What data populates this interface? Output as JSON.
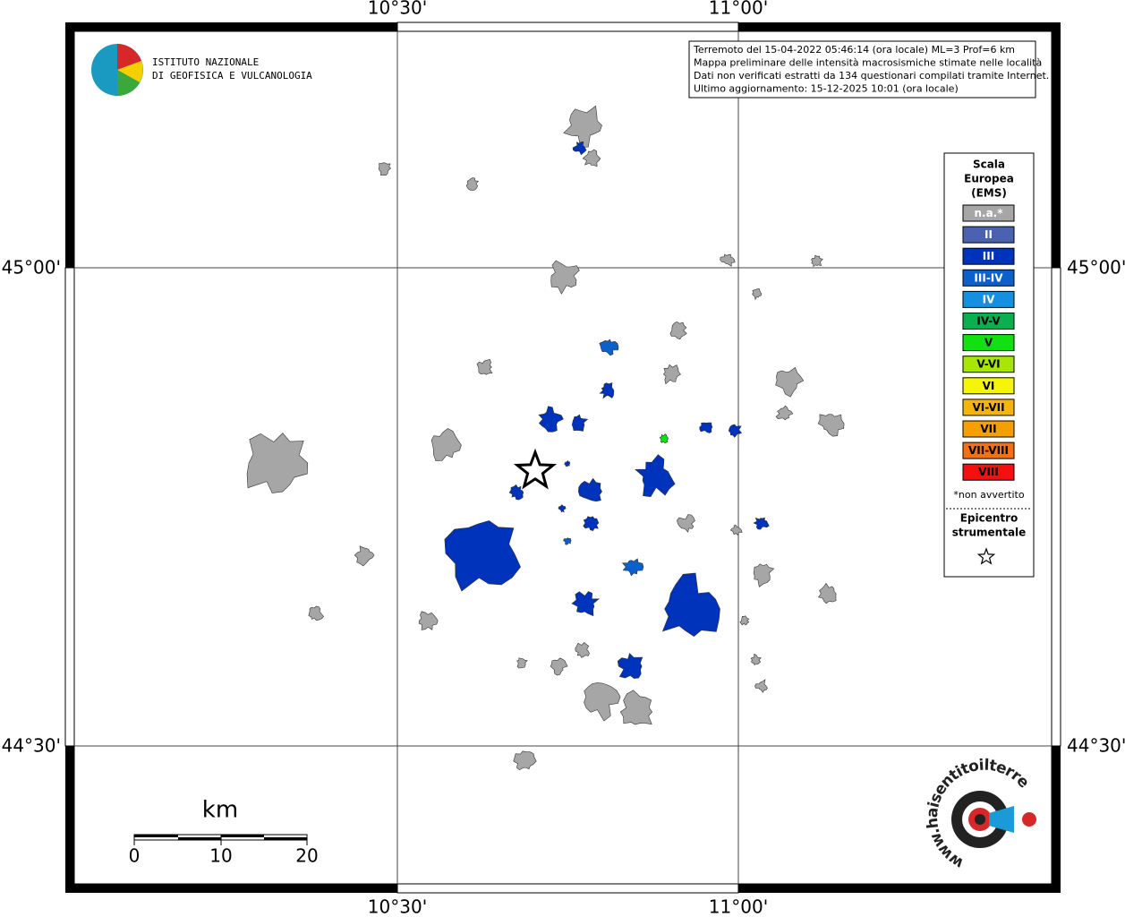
{
  "graticule": {
    "top": [
      "10°30'",
      "11°00'"
    ],
    "bottom": [
      "10°30'",
      "11°00'"
    ],
    "left": [
      "45°00'",
      "44°30'"
    ],
    "right": [
      "45°00'",
      "44°30'"
    ]
  },
  "logo": {
    "line1": "ISTITUTO NAZIONALE",
    "line2": "DI GEOFISICA E VULCANOLOGIA"
  },
  "info": [
    "Terremoto del 15-04-2022 05:46:14 (ora locale) ML=3 Prof=6 km",
    "Mappa preliminare delle intensità macrosismiche stimate nelle località",
    "Dati non verificati estratti da 134 questionari compilati tramite Internet.",
    "Ultimo aggiornamento: 15-12-2025 10:01 (ora locale)"
  ],
  "legend": {
    "title": [
      "Scala",
      "Europea",
      "(EMS)"
    ],
    "items": [
      {
        "label": "n.a.*",
        "color": "#a6a6a6"
      },
      {
        "label": "II",
        "color": "#4a62b0"
      },
      {
        "label": "III",
        "color": "#0033bb"
      },
      {
        "label": "III-IV",
        "color": "#0b60cc"
      },
      {
        "label": "IV",
        "color": "#1590e0"
      },
      {
        "label": "IV-V",
        "color": "#0ab050"
      },
      {
        "label": "V",
        "color": "#11e011"
      },
      {
        "label": "V-VI",
        "color": "#a8e60a"
      },
      {
        "label": "VI",
        "color": "#f5f50a"
      },
      {
        "label": "VI-VII",
        "color": "#f5b50a"
      },
      {
        "label": "VII",
        "color": "#f5a000"
      },
      {
        "label": "VII-VIII",
        "color": "#f57010"
      },
      {
        "label": "VIII",
        "color": "#f51010"
      }
    ],
    "note": "*non avvertito",
    "epicenter": [
      "Epicentro",
      "strumentale"
    ]
  },
  "scalebar": {
    "unit": "km",
    "labels": [
      "0",
      "10",
      "20"
    ]
  },
  "site": "www.haisentitoilterremoto.it"
}
